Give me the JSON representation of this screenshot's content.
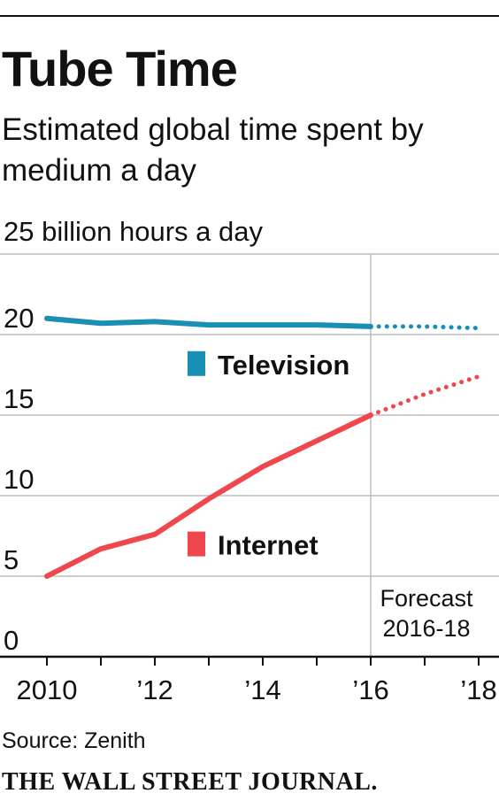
{
  "header": {
    "title": "Tube Time",
    "subtitle": "Estimated global time spent by medium a day"
  },
  "footer": {
    "source": "Source: Zenith",
    "publisher": "THE WALL STREET JOURNAL."
  },
  "chart_data": {
    "type": "line",
    "title": "Tube Time",
    "subtitle": "Estimated global time spent by medium a day",
    "xlabel": "",
    "ylabel": "",
    "unit_label": "25 billion hours a day",
    "x": [
      2010,
      2011,
      2012,
      2013,
      2014,
      2015,
      2016,
      2017,
      2018
    ],
    "xlim": [
      2010,
      2018
    ],
    "ylim": [
      0,
      25
    ],
    "x_ticks": [
      {
        "value": 2010,
        "label": "2010"
      },
      {
        "value": 2012,
        "label": "’12"
      },
      {
        "value": 2014,
        "label": "’14"
      },
      {
        "value": 2016,
        "label": "’16"
      },
      {
        "value": 2018,
        "label": "’18"
      }
    ],
    "y_ticks": [
      {
        "value": 0,
        "label": "0"
      },
      {
        "value": 5,
        "label": "5"
      },
      {
        "value": 10,
        "label": "10"
      },
      {
        "value": 15,
        "label": "15"
      },
      {
        "value": 20,
        "label": "20"
      }
    ],
    "grid": true,
    "forecast_start": 2016,
    "forecast_label": [
      "Forecast",
      "2016-18"
    ],
    "series": [
      {
        "name": "Television",
        "color": "#1a8fb5",
        "values": [
          21.0,
          20.7,
          20.8,
          20.6,
          20.6,
          20.6,
          20.5,
          20.5,
          20.4
        ],
        "label_at": [
          2013,
          18.2
        ]
      },
      {
        "name": "Internet",
        "color": "#f0474c",
        "values": [
          5.0,
          6.7,
          7.6,
          9.8,
          11.8,
          13.4,
          15.0,
          16.3,
          17.4
        ],
        "label_at": [
          2013,
          7.0
        ]
      }
    ]
  }
}
